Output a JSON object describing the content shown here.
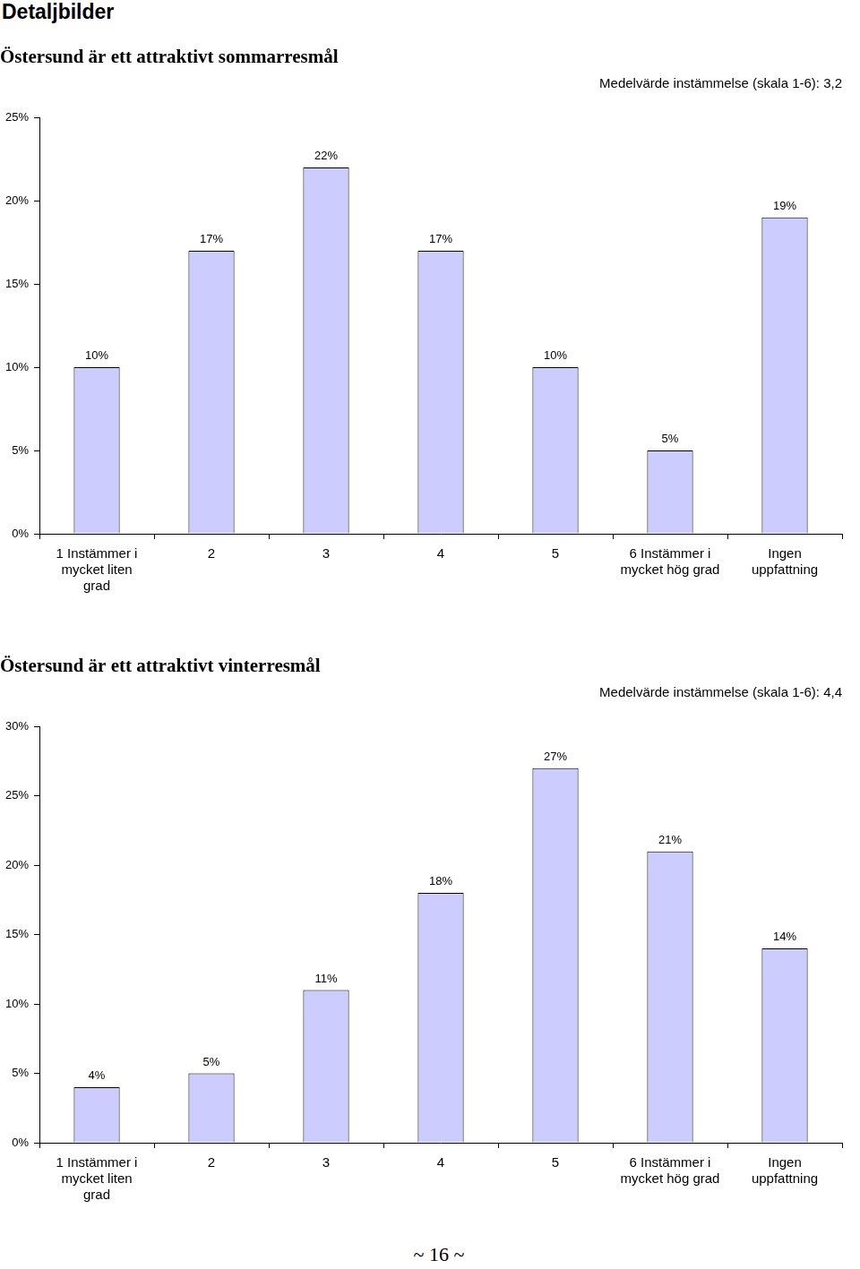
{
  "page": {
    "heading": "Detaljbilder",
    "footer": "~ 16 ~"
  },
  "chart_data": [
    {
      "type": "bar",
      "title": "Östersund är ett attraktivt sommarresmål",
      "subtitle": "Medelvärde instämmelse (skala 1-6): 3,2",
      "categories": [
        [
          "1 Instämmer i",
          "mycket liten",
          "grad"
        ],
        "2",
        "3",
        "4",
        "5",
        [
          "6 Instämmer i",
          "mycket hög grad"
        ],
        [
          "Ingen",
          "uppfattning"
        ]
      ],
      "values": [
        10,
        17,
        22,
        17,
        10,
        5,
        19
      ],
      "value_labels": [
        "10%",
        "17%",
        "22%",
        "17%",
        "10%",
        "5%",
        "19%"
      ],
      "color": "#ccccff",
      "ylim": [
        0,
        25
      ],
      "yticks": [
        {
          "value": 0,
          "label": "0%"
        },
        {
          "value": 5,
          "label": "5%"
        },
        {
          "value": 10,
          "label": "10%"
        },
        {
          "value": 15,
          "label": "15%"
        },
        {
          "value": 20,
          "label": "20%"
        },
        {
          "value": 25,
          "label": "25%"
        }
      ],
      "grid": false,
      "data_labels": true
    },
    {
      "type": "bar",
      "title": "Östersund är ett attraktivt vinterresmål",
      "subtitle": "Medelvärde instämmelse (skala 1-6): 4,4",
      "categories": [
        [
          "1 Instämmer i",
          "mycket liten",
          "grad"
        ],
        "2",
        "3",
        "4",
        "5",
        [
          "6 Instämmer i",
          "mycket hög grad"
        ],
        [
          "Ingen",
          "uppfattning"
        ]
      ],
      "values": [
        4,
        5,
        11,
        18,
        27,
        21,
        14
      ],
      "value_labels": [
        "4%",
        "5%",
        "11%",
        "18%",
        "27%",
        "21%",
        "14%"
      ],
      "color": "#ccccff",
      "ylim": [
        0,
        30
      ],
      "yticks": [
        {
          "value": 0,
          "label": "0%"
        },
        {
          "value": 5,
          "label": "5%"
        },
        {
          "value": 10,
          "label": "10%"
        },
        {
          "value": 15,
          "label": "15%"
        },
        {
          "value": 20,
          "label": "20%"
        },
        {
          "value": 25,
          "label": "25%"
        },
        {
          "value": 30,
          "label": "30%"
        }
      ],
      "grid": false,
      "data_labels": true
    }
  ]
}
